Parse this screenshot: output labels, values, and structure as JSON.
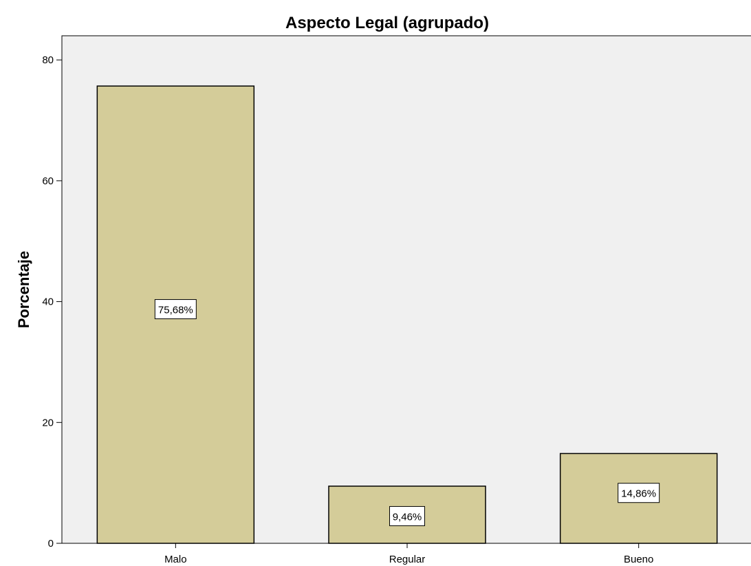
{
  "colors": {
    "plot_background": "#f0f0f0",
    "bar_fill": "#d4cc99",
    "bar_stroke": "#000000",
    "label_box_fill": "#ffffff"
  },
  "chart_data": {
    "type": "bar",
    "title": "Aspecto Legal (agrupado)",
    "xlabel": "",
    "ylabel": "Porcentaje",
    "categories": [
      "Malo",
      "Regular",
      "Bueno"
    ],
    "values": [
      75.68,
      9.46,
      14.86
    ],
    "data_labels": [
      "75,68%",
      "9,46%",
      "14,86%"
    ],
    "ylim": [
      0,
      84
    ],
    "yticks": [
      0,
      20,
      40,
      60,
      80
    ],
    "ytick_labels": [
      "0",
      "20",
      "40",
      "60",
      "80"
    ],
    "grid": false,
    "legend": "none"
  }
}
